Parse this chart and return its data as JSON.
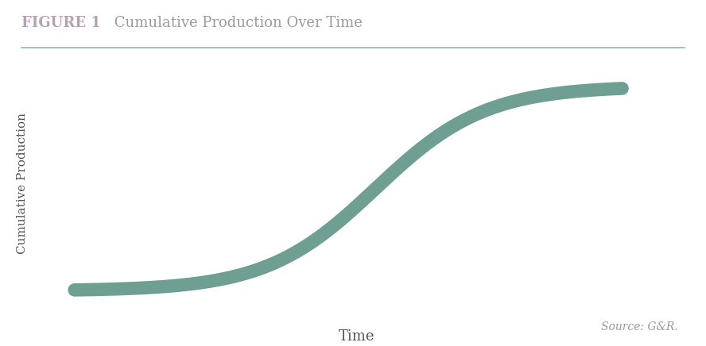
{
  "title_bold": "FIGURE 1",
  "title_bold_color": "#b5a0b5",
  "title_rest": " Cumulative Production Over Time",
  "title_rest_color": "#9a9a9a",
  "title_fontsize": 13,
  "xlabel": "Time",
  "ylabel": "Cumulative Production",
  "xlabel_fontsize": 13,
  "ylabel_fontsize": 11,
  "axis_label_color": "#555555",
  "curve_color": "#6f9e93",
  "curve_linewidth": 12,
  "source_text": "Source: G&R.",
  "source_fontsize": 10,
  "source_color": "#999999",
  "bg_color": "#ffffff",
  "separator_color": "#8fb8b2",
  "figsize": [
    8.88,
    4.36
  ],
  "dpi": 100
}
